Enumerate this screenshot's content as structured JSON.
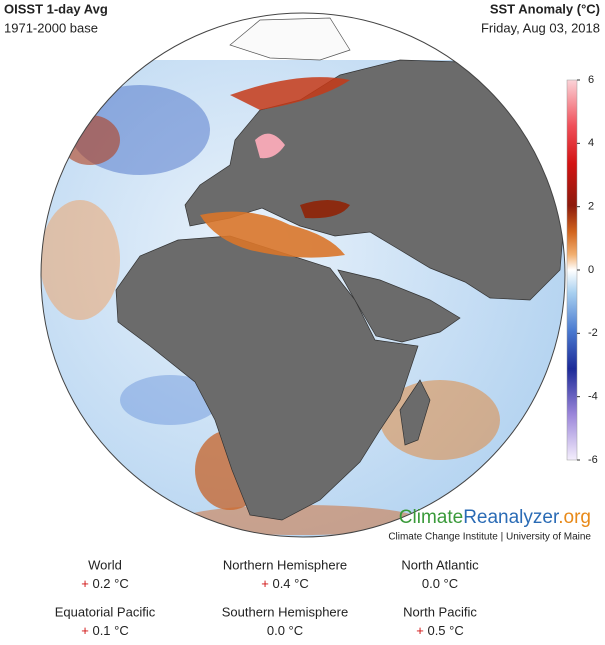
{
  "header": {
    "title": "OISST 1-day Avg",
    "subtitle": "1971-2000 base",
    "metric": "SST Anomaly (°C)",
    "date": "Friday, Aug 03, 2018"
  },
  "colorbar": {
    "lim": [
      -6,
      6
    ],
    "ticks": [
      6,
      4,
      2,
      0,
      -2,
      -4,
      -6
    ]
  },
  "logo": {
    "part1": "Climate",
    "part2": "Reanalyzer",
    "part3": ".org",
    "credit": "Climate Change Institute | University of Maine"
  },
  "stats": [
    {
      "name": "World",
      "sign": "+",
      "value": "0.2 °C"
    },
    {
      "name": "Northern Hemisphere",
      "sign": "+",
      "value": "0.4 °C"
    },
    {
      "name": "North Atlantic",
      "value": "0.0 °C"
    },
    {
      "name": "Equatorial Pacific",
      "sign": "+",
      "value": "0.1 °C"
    },
    {
      "name": "Southern Hemisphere",
      "value": "0.0 °C"
    },
    {
      "name": "North Pacific",
      "sign": "+",
      "value": "0.5 °C"
    }
  ]
}
